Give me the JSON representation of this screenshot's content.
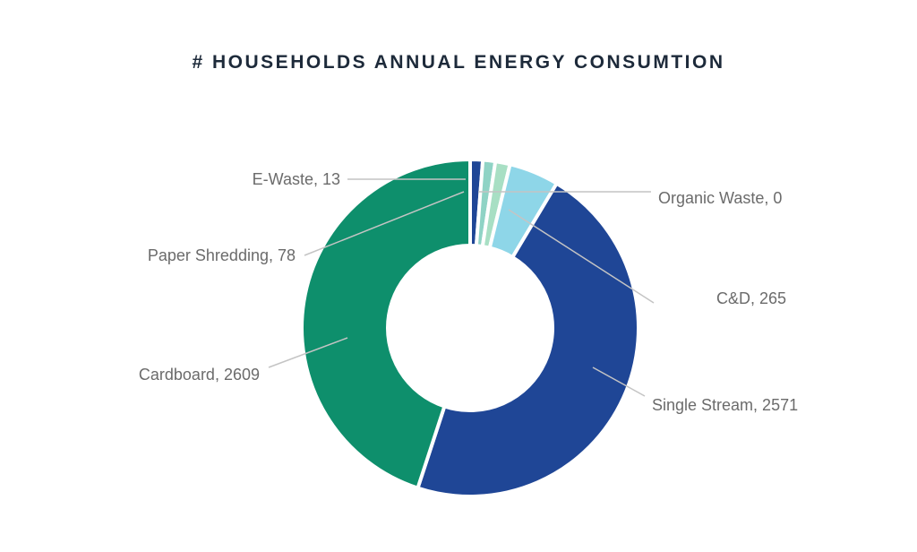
{
  "chart_data": {
    "type": "pie",
    "title": "# HOUSEHOLDS ANNUAL ENERGY CONSUMTION",
    "donut": true,
    "slices": [
      {
        "label": "E-Waste, 13",
        "name": "E-Waste",
        "value": 13,
        "color": "#1f4696"
      },
      {
        "label": "Organic Waste, 0",
        "name": "Organic Waste",
        "value": 0,
        "color": "#8fd3c5"
      },
      {
        "label": "Paper Shredding, 78",
        "name": "Paper Shredding",
        "value": 78,
        "color": "#a8dfc4"
      },
      {
        "label": "C&D, 265",
        "name": "C&D",
        "value": 265,
        "color": "#8ed6e8"
      },
      {
        "label": "Single Stream, 2571",
        "name": "Single Stream",
        "value": 2571,
        "color": "#1f4696"
      },
      {
        "label": "Cardboard, 2609",
        "name": "Cardboard",
        "value": 2609,
        "color": "#0e8f6c"
      }
    ]
  }
}
